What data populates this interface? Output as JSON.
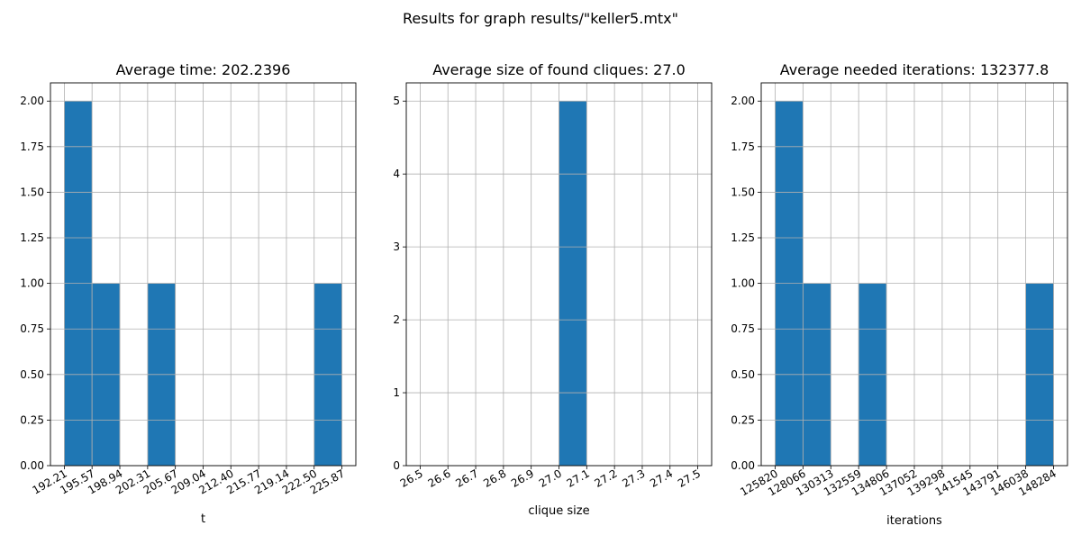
{
  "figure_title": "Results for graph results/\"keller5.mtx\"",
  "bar_color": "#1f77b4",
  "grid_color": "#b0b0b0",
  "chart_data": [
    {
      "type": "bar",
      "title": "Average time: 202.2396",
      "xlabel": "t",
      "ylabel": "",
      "grid": true,
      "bin_edges": [
        192.21,
        195.57,
        198.94,
        202.31,
        205.67,
        209.04,
        212.4,
        215.77,
        219.14,
        222.5,
        225.87
      ],
      "xtick_labels": [
        "192.21",
        "195.57",
        "198.94",
        "202.31",
        "205.67",
        "209.04",
        "212.40",
        "215.77",
        "219.14",
        "222.50",
        "225.87"
      ],
      "values": [
        2,
        1,
        0,
        1,
        0,
        0,
        0,
        0,
        0,
        1
      ],
      "ylim": [
        0,
        2.1
      ],
      "yticks": [
        0,
        0.25,
        0.5,
        0.75,
        1.0,
        1.25,
        1.5,
        1.75,
        2.0
      ],
      "ytick_labels": [
        "0.00",
        "0.25",
        "0.50",
        "0.75",
        "1.00",
        "1.25",
        "1.50",
        "1.75",
        "2.00"
      ]
    },
    {
      "type": "bar",
      "title": "Average size of found cliques: 27.0",
      "xlabel": "clique size",
      "ylabel": "",
      "grid": true,
      "bin_edges": [
        26.5,
        26.6,
        26.7,
        26.8,
        26.9,
        27.0,
        27.1,
        27.2,
        27.3,
        27.4,
        27.5
      ],
      "xtick_labels": [
        "26.5",
        "26.6",
        "26.7",
        "26.8",
        "26.9",
        "27.0",
        "27.1",
        "27.2",
        "27.3",
        "27.4",
        "27.5"
      ],
      "values": [
        0,
        0,
        0,
        0,
        0,
        5,
        0,
        0,
        0,
        0
      ],
      "ylim": [
        0,
        5.25
      ],
      "yticks": [
        0,
        1,
        2,
        3,
        4,
        5
      ],
      "ytick_labels": [
        "0",
        "1",
        "2",
        "3",
        "4",
        "5"
      ]
    },
    {
      "type": "bar",
      "title": "Average needed iterations: 132377.8",
      "xlabel": "iterations",
      "ylabel": "",
      "grid": true,
      "bin_edges": [
        125820,
        128066,
        130313,
        132559,
        134806,
        137052,
        139298,
        141545,
        143791,
        146038,
        148284
      ],
      "xtick_labels": [
        "125820",
        "128066",
        "130313",
        "132559",
        "134806",
        "137052",
        "139298",
        "141545",
        "143791",
        "146038",
        "148284"
      ],
      "values": [
        2,
        1,
        0,
        1,
        0,
        0,
        0,
        0,
        0,
        1
      ],
      "ylim": [
        0,
        2.1
      ],
      "yticks": [
        0,
        0.25,
        0.5,
        0.75,
        1.0,
        1.25,
        1.5,
        1.75,
        2.0
      ],
      "ytick_labels": [
        "0.00",
        "0.25",
        "0.50",
        "0.75",
        "1.00",
        "1.25",
        "1.50",
        "1.75",
        "2.00"
      ]
    }
  ]
}
